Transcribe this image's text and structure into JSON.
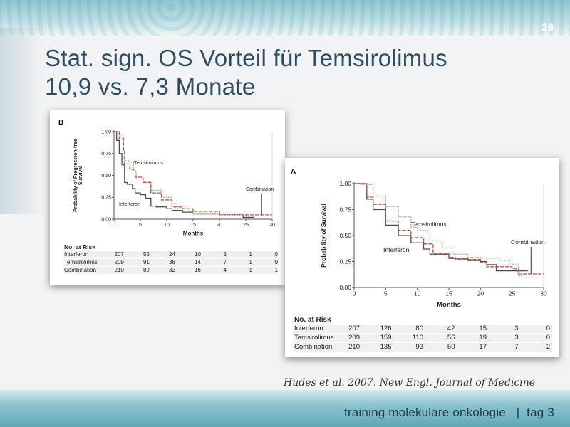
{
  "slide": {
    "page_number": "29",
    "title_line1": "Stat. sign. OS Vorteil für Temsirolimus",
    "title_line2": "10,9 vs. 7,3 Monate",
    "citation": "Hudes et al. 2007. New Engl. Journal of Medicine",
    "footer": "training molekulare onkologie   |  tag 3"
  },
  "colors": {
    "Interferon": "#4a4a52",
    "Temsirolimus": "#8fc48a",
    "Combination": "#c0503f",
    "title": "#2e4e60"
  },
  "chart_data": [
    {
      "id": "B",
      "panel_label": "B",
      "type": "line",
      "subtype": "kaplan-meier",
      "xlabel": "Months",
      "ylabel": "Probability of Progression-free Survival",
      "xlim": [
        0,
        30
      ],
      "ylim": [
        0,
        1
      ],
      "xticks": [
        "0",
        "5",
        "10",
        "15",
        "20",
        "25",
        "30"
      ],
      "yticks": [
        "0.00",
        "0.25",
        "0.50",
        "0.75",
        "1.00"
      ],
      "annotations": {
        "Temsirolimus": "Temsirolimus",
        "Interferon": "Interferon",
        "Combination": "Combination"
      },
      "series": [
        {
          "name": "Interferon",
          "points": [
            [
              0,
              1
            ],
            [
              0.5,
              0.9
            ],
            [
              1,
              0.75
            ],
            [
              1.5,
              0.62
            ],
            [
              2,
              0.42
            ],
            [
              2.5,
              0.4
            ],
            [
              3.5,
              0.35
            ],
            [
              4,
              0.3
            ],
            [
              5,
              0.28
            ],
            [
              6,
              0.24
            ],
            [
              7,
              0.15
            ],
            [
              8,
              0.14
            ],
            [
              10,
              0.12
            ],
            [
              11,
              0.1
            ],
            [
              13,
              0.08
            ],
            [
              15,
              0.06
            ],
            [
              20,
              0.05
            ],
            [
              24.5,
              0.02
            ],
            [
              26.5,
              0.02
            ]
          ]
        },
        {
          "name": "Temsirolimus",
          "points": [
            [
              0,
              1
            ],
            [
              1,
              0.95
            ],
            [
              1.8,
              0.8
            ],
            [
              2,
              0.67
            ],
            [
              3,
              0.65
            ],
            [
              3.7,
              0.55
            ],
            [
              4.2,
              0.46
            ],
            [
              5.5,
              0.43
            ],
            [
              7,
              0.33
            ],
            [
              9,
              0.25
            ],
            [
              11,
              0.18
            ],
            [
              12,
              0.12
            ],
            [
              15,
              0.07
            ],
            [
              20,
              0.05
            ],
            [
              25,
              0.03
            ],
            [
              27,
              0.03
            ]
          ]
        },
        {
          "name": "Combination",
          "points": [
            [
              0,
              1
            ],
            [
              1,
              0.92
            ],
            [
              1.8,
              0.78
            ],
            [
              2,
              0.63
            ],
            [
              3,
              0.57
            ],
            [
              4,
              0.48
            ],
            [
              5.5,
              0.42
            ],
            [
              7,
              0.3
            ],
            [
              9,
              0.22
            ],
            [
              11,
              0.14
            ],
            [
              13,
              0.12
            ],
            [
              15,
              0.09
            ],
            [
              20,
              0.06
            ],
            [
              25,
              0.05
            ],
            [
              30,
              0.05
            ]
          ]
        }
      ],
      "risk_table": {
        "title": "No. at Risk",
        "rows": [
          {
            "label": "Interferon",
            "values": [
              "207",
              "55",
              "24",
              "10",
              "5",
              "1",
              "0"
            ]
          },
          {
            "label": "Temsirolimus",
            "values": [
              "209",
              "91",
              "38",
              "14",
              "7",
              "1",
              "0"
            ]
          },
          {
            "label": "Combination",
            "values": [
              "210",
              "89",
              "32",
              "16",
              "4",
              "1",
              "1"
            ]
          }
        ]
      }
    },
    {
      "id": "A",
      "panel_label": "A",
      "type": "line",
      "subtype": "kaplan-meier",
      "xlabel": "Months",
      "ylabel": "Probability of Survival",
      "xlim": [
        0,
        30
      ],
      "ylim": [
        0,
        1
      ],
      "xticks": [
        "0",
        "5",
        "10",
        "15",
        "20",
        "25",
        "30"
      ],
      "yticks": [
        "0.00",
        "0.25",
        "0.50",
        "0.75",
        "1.00"
      ],
      "annotations": {
        "Temsirolimus": "Temsirolimus",
        "Interferon": "Interferon",
        "Combination": "Combination"
      },
      "series": [
        {
          "name": "Interferon",
          "points": [
            [
              0,
              1
            ],
            [
              2,
              0.85
            ],
            [
              3,
              0.75
            ],
            [
              5,
              0.6
            ],
            [
              7,
              0.5
            ],
            [
              9,
              0.43
            ],
            [
              11,
              0.37
            ],
            [
              12,
              0.32
            ],
            [
              15,
              0.28
            ],
            [
              18,
              0.26
            ],
            [
              20,
              0.25
            ],
            [
              21,
              0.22
            ],
            [
              22.5,
              0.16
            ],
            [
              27.5,
              0.16
            ]
          ]
        },
        {
          "name": "Temsirolimus",
          "points": [
            [
              0,
              1
            ],
            [
              1,
              0.99
            ],
            [
              3,
              0.88
            ],
            [
              5,
              0.78
            ],
            [
              7,
              0.68
            ],
            [
              9,
              0.58
            ],
            [
              10,
              0.55
            ],
            [
              12,
              0.45
            ],
            [
              14,
              0.38
            ],
            [
              15.5,
              0.32
            ],
            [
              18,
              0.29
            ],
            [
              20,
              0.28
            ],
            [
              23,
              0.26
            ],
            [
              25,
              0.22
            ],
            [
              26,
              0.11
            ],
            [
              26.5,
              0.11
            ]
          ]
        },
        {
          "name": "Combination",
          "points": [
            [
              0,
              1
            ],
            [
              2,
              0.87
            ],
            [
              3,
              0.8
            ],
            [
              5,
              0.64
            ],
            [
              7,
              0.55
            ],
            [
              9,
              0.48
            ],
            [
              11,
              0.42
            ],
            [
              12.5,
              0.33
            ],
            [
              15,
              0.29
            ],
            [
              16,
              0.27
            ],
            [
              20,
              0.24
            ],
            [
              21,
              0.2
            ],
            [
              25,
              0.18
            ],
            [
              26,
              0.13
            ],
            [
              30,
              0.13
            ]
          ]
        }
      ],
      "risk_table": {
        "title": "No. at Risk",
        "rows": [
          {
            "label": "Interferon",
            "values": [
              "207",
              "126",
              "80",
              "42",
              "15",
              "3",
              "0"
            ]
          },
          {
            "label": "Temsirolimus",
            "values": [
              "209",
              "159",
              "110",
              "56",
              "19",
              "3",
              "0"
            ]
          },
          {
            "label": "Combination",
            "values": [
              "210",
              "135",
              "93",
              "50",
              "17",
              "7",
              "2"
            ]
          }
        ]
      }
    }
  ]
}
